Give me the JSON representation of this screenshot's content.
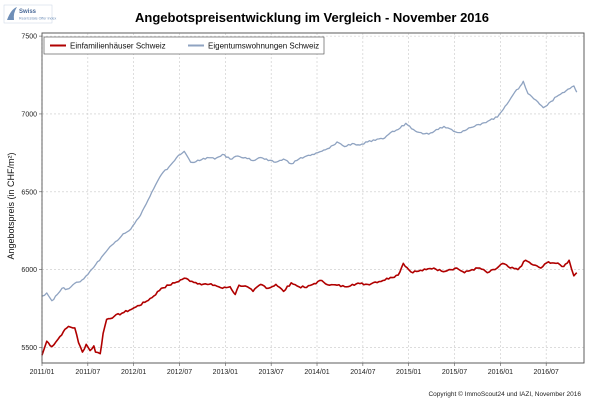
{
  "logo": {
    "line1": "Swiss",
    "line2": "Real Estate Offer Index"
  },
  "copyright": "Copyright © ImmoScout24 und IAZI, November 2016",
  "chart_data": {
    "type": "line",
    "title": "Angebotspreisentwicklung im Vergleich - November 2016",
    "xlabel": "",
    "ylabel": "Angebotspreis (in CHF/m²)",
    "ylim": [
      5400,
      7520
    ],
    "yticks": [
      5500,
      6000,
      6500,
      7000,
      7500
    ],
    "xlim": [
      "2011-01",
      "2016-11"
    ],
    "xticks": [
      "2011/01",
      "2011/07",
      "2012/01",
      "2012/07",
      "2013/01",
      "2013/07",
      "2014/01",
      "2014/07",
      "2015/01",
      "2015/07",
      "2016/01",
      "2016/07"
    ],
    "grid": true,
    "legend_position": "top-left",
    "series": [
      {
        "name": "Einfamilienhäuser Schweiz",
        "color": "#b00000",
        "anchors": [
          [
            "2011-01-01",
            5450
          ],
          [
            "2011-01-20",
            5540
          ],
          [
            "2011-02-10",
            5505
          ],
          [
            "2011-03-05",
            5555
          ],
          [
            "2011-03-25",
            5600
          ],
          [
            "2011-04-15",
            5635
          ],
          [
            "2011-05-10",
            5625
          ],
          [
            "2011-05-25",
            5530
          ],
          [
            "2011-06-10",
            5470
          ],
          [
            "2011-06-25",
            5520
          ],
          [
            "2011-07-10",
            5480
          ],
          [
            "2011-07-25",
            5510
          ],
          [
            "2011-08-01",
            5470
          ],
          [
            "2011-08-20",
            5460
          ],
          [
            "2011-09-01",
            5590
          ],
          [
            "2011-09-15",
            5680
          ],
          [
            "2011-10-15",
            5700
          ],
          [
            "2011-11-15",
            5720
          ],
          [
            "2011-12-15",
            5740
          ],
          [
            "2012-01-10",
            5760
          ],
          [
            "2012-02-15",
            5790
          ],
          [
            "2012-03-20",
            5830
          ],
          [
            "2012-04-20",
            5880
          ],
          [
            "2012-05-20",
            5900
          ],
          [
            "2012-06-20",
            5920
          ],
          [
            "2012-07-20",
            5945
          ],
          [
            "2012-08-20",
            5925
          ],
          [
            "2012-09-20",
            5910
          ],
          [
            "2012-10-20",
            5905
          ],
          [
            "2012-11-20",
            5900
          ],
          [
            "2012-12-20",
            5880
          ],
          [
            "2013-01-20",
            5890
          ],
          [
            "2013-02-10",
            5840
          ],
          [
            "2013-02-25",
            5900
          ],
          [
            "2013-03-20",
            5895
          ],
          [
            "2013-04-20",
            5860
          ],
          [
            "2013-05-20",
            5905
          ],
          [
            "2013-06-20",
            5880
          ],
          [
            "2013-07-20",
            5905
          ],
          [
            "2013-08-20",
            5860
          ],
          [
            "2013-09-20",
            5915
          ],
          [
            "2013-10-20",
            5890
          ],
          [
            "2013-11-20",
            5885
          ],
          [
            "2013-12-20",
            5910
          ],
          [
            "2014-01-20",
            5930
          ],
          [
            "2014-02-20",
            5900
          ],
          [
            "2014-03-20",
            5900
          ],
          [
            "2014-04-20",
            5890
          ],
          [
            "2014-05-20",
            5905
          ],
          [
            "2014-06-20",
            5910
          ],
          [
            "2014-07-20",
            5905
          ],
          [
            "2014-08-20",
            5920
          ],
          [
            "2014-09-20",
            5930
          ],
          [
            "2014-10-20",
            5950
          ],
          [
            "2014-11-20",
            5965
          ],
          [
            "2014-12-10",
            6040
          ],
          [
            "2015-01-10",
            5985
          ],
          [
            "2015-02-10",
            5990
          ],
          [
            "2015-03-10",
            6000
          ],
          [
            "2015-04-10",
            6010
          ],
          [
            "2015-05-10",
            5990
          ],
          [
            "2015-06-10",
            6000
          ],
          [
            "2015-07-10",
            6010
          ],
          [
            "2015-08-10",
            5980
          ],
          [
            "2015-09-10",
            6000
          ],
          [
            "2015-10-10",
            6010
          ],
          [
            "2015-11-10",
            5980
          ],
          [
            "2015-12-10",
            6000
          ],
          [
            "2016-01-10",
            6040
          ],
          [
            "2016-02-10",
            6010
          ],
          [
            "2016-03-10",
            6000
          ],
          [
            "2016-04-10",
            6060
          ],
          [
            "2016-05-10",
            6030
          ],
          [
            "2016-06-10",
            6010
          ],
          [
            "2016-07-10",
            6050
          ],
          [
            "2016-08-10",
            6040
          ],
          [
            "2016-09-10",
            6020
          ],
          [
            "2016-10-01",
            6060
          ],
          [
            "2016-10-20",
            5960
          ],
          [
            "2016-11-01",
            5980
          ]
        ]
      },
      {
        "name": "Eigentumswohnungen Schweiz",
        "color": "#8fa3c1",
        "anchors": [
          [
            "2011-01-01",
            5830
          ],
          [
            "2011-01-20",
            5850
          ],
          [
            "2011-02-10",
            5800
          ],
          [
            "2011-03-01",
            5840
          ],
          [
            "2011-03-20",
            5880
          ],
          [
            "2011-04-10",
            5875
          ],
          [
            "2011-05-01",
            5900
          ],
          [
            "2011-05-25",
            5920
          ],
          [
            "2011-06-15",
            5940
          ],
          [
            "2011-07-10",
            5990
          ],
          [
            "2011-08-01",
            6030
          ],
          [
            "2011-08-25",
            6080
          ],
          [
            "2011-09-20",
            6130
          ],
          [
            "2011-10-20",
            6180
          ],
          [
            "2011-11-20",
            6230
          ],
          [
            "2011-12-20",
            6260
          ],
          [
            "2012-01-20",
            6330
          ],
          [
            "2012-02-20",
            6420
          ],
          [
            "2012-03-20",
            6520
          ],
          [
            "2012-04-20",
            6610
          ],
          [
            "2012-05-20",
            6660
          ],
          [
            "2012-06-20",
            6720
          ],
          [
            "2012-07-20",
            6760
          ],
          [
            "2012-08-15",
            6690
          ],
          [
            "2012-09-20",
            6700
          ],
          [
            "2012-10-20",
            6720
          ],
          [
            "2012-11-20",
            6710
          ],
          [
            "2012-12-20",
            6740
          ],
          [
            "2013-01-20",
            6710
          ],
          [
            "2013-02-20",
            6730
          ],
          [
            "2013-03-20",
            6720
          ],
          [
            "2013-04-20",
            6700
          ],
          [
            "2013-05-20",
            6720
          ],
          [
            "2013-06-20",
            6700
          ],
          [
            "2013-07-20",
            6690
          ],
          [
            "2013-08-20",
            6710
          ],
          [
            "2013-09-20",
            6680
          ],
          [
            "2013-10-20",
            6710
          ],
          [
            "2013-11-20",
            6730
          ],
          [
            "2013-12-20",
            6740
          ],
          [
            "2014-01-20",
            6760
          ],
          [
            "2014-02-20",
            6780
          ],
          [
            "2014-03-20",
            6820
          ],
          [
            "2014-04-20",
            6790
          ],
          [
            "2014-05-20",
            6810
          ],
          [
            "2014-06-20",
            6800
          ],
          [
            "2014-07-20",
            6820
          ],
          [
            "2014-08-20",
            6830
          ],
          [
            "2014-09-20",
            6840
          ],
          [
            "2014-10-20",
            6880
          ],
          [
            "2014-11-20",
            6900
          ],
          [
            "2014-12-20",
            6940
          ],
          [
            "2015-01-20",
            6900
          ],
          [
            "2015-02-20",
            6880
          ],
          [
            "2015-03-20",
            6870
          ],
          [
            "2015-04-20",
            6900
          ],
          [
            "2015-05-20",
            6920
          ],
          [
            "2015-06-20",
            6900
          ],
          [
            "2015-07-20",
            6880
          ],
          [
            "2015-08-20",
            6900
          ],
          [
            "2015-09-20",
            6920
          ],
          [
            "2015-10-20",
            6940
          ],
          [
            "2015-11-20",
            6960
          ],
          [
            "2015-12-20",
            6980
          ],
          [
            "2016-01-20",
            7050
          ],
          [
            "2016-02-20",
            7120
          ],
          [
            "2016-03-20",
            7180
          ],
          [
            "2016-04-01",
            7210
          ],
          [
            "2016-04-20",
            7130
          ],
          [
            "2016-05-20",
            7090
          ],
          [
            "2016-06-20",
            7040
          ],
          [
            "2016-07-20",
            7080
          ],
          [
            "2016-08-20",
            7120
          ],
          [
            "2016-09-20",
            7150
          ],
          [
            "2016-10-20",
            7180
          ],
          [
            "2016-11-01",
            7140
          ]
        ]
      }
    ]
  }
}
